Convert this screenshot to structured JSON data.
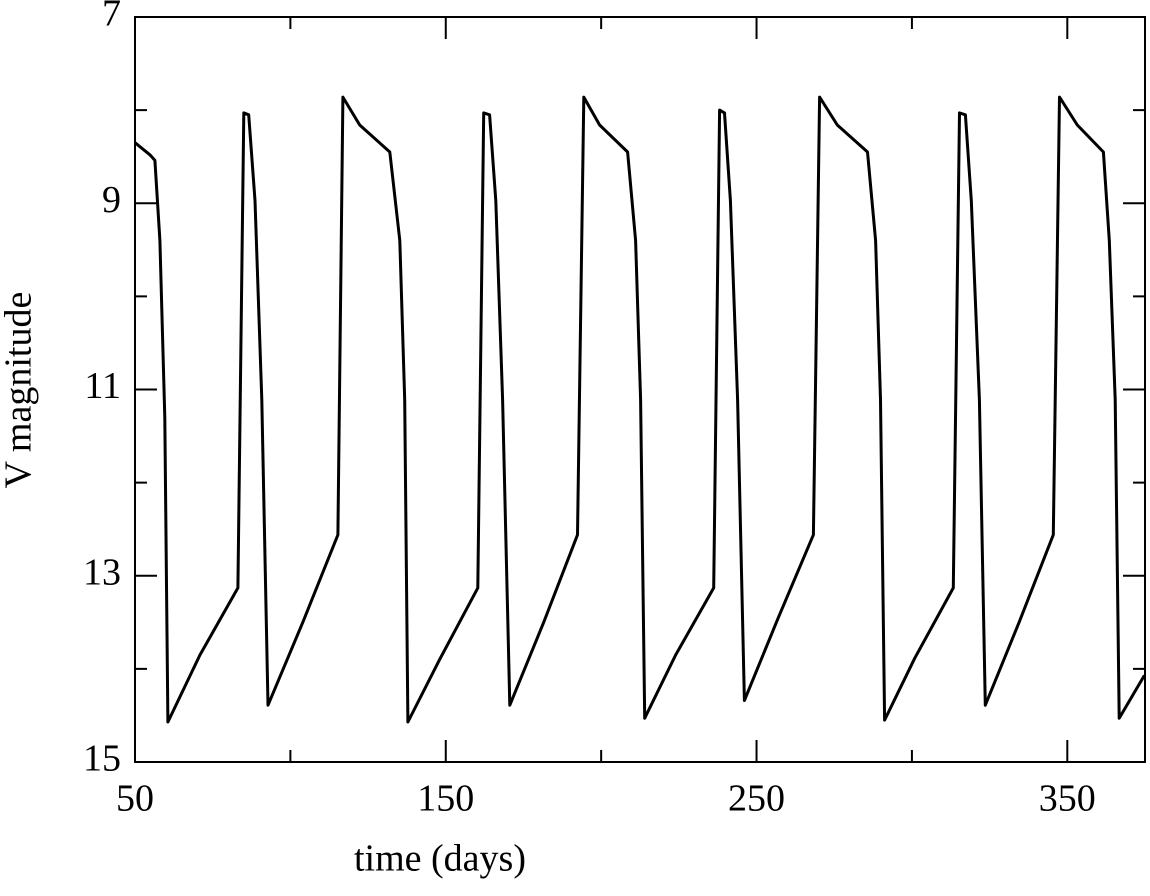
{
  "chart_data": {
    "type": "line",
    "x_label": "time (days)",
    "y_label": "V magnitude",
    "color": "#000000",
    "xlim": [
      50,
      375
    ],
    "ylim": [
      15,
      7
    ],
    "xticks": [
      50,
      150,
      250,
      350
    ],
    "xminor_ticks": [
      100,
      200,
      300
    ],
    "yticks": [
      7,
      9,
      11,
      13,
      15
    ],
    "yminor_ticks": [
      8,
      10,
      12,
      14
    ],
    "x": [
      50,
      54.8,
      56.4,
      58,
      59.6,
      60.6,
      70.9,
      83.1,
      85,
      86.6,
      88.6,
      90.8,
      92.8,
      104,
      115.3,
      116.9,
      122.3,
      132,
      135.2,
      136.8,
      137.8,
      148,
      160.3,
      162.2,
      164.1,
      166.1,
      168.3,
      170.6,
      181.5,
      192.4,
      194.4,
      199.5,
      208.5,
      211.1,
      212.7,
      214,
      224,
      236.2,
      238.1,
      239.7,
      241.6,
      243.9,
      246.1,
      257,
      268.3,
      270.3,
      276,
      285.7,
      288.3,
      289.9,
      291.2,
      301,
      313.3,
      315.3,
      317.2,
      319.1,
      321.7,
      323.6,
      334.5,
      345.5,
      347.5,
      353.2,
      361.6,
      363.5,
      365.4,
      366.7,
      374.8
    ],
    "values": [
      8.35,
      8.48,
      8.54,
      9.4,
      11.3,
      14.57,
      13.85,
      13.13,
      8.03,
      8.05,
      8.97,
      11.11,
      14.39,
      13.5,
      12.56,
      7.86,
      8.16,
      8.45,
      9.4,
      11.11,
      14.57,
      13.9,
      13.13,
      8.03,
      8.05,
      8.97,
      11.11,
      14.39,
      13.5,
      12.56,
      7.86,
      8.16,
      8.45,
      9.4,
      11.11,
      14.53,
      13.85,
      13.13,
      8.0,
      8.03,
      8.97,
      11.11,
      14.34,
      13.45,
      12.56,
      7.86,
      8.16,
      8.45,
      9.4,
      11.11,
      14.55,
      13.88,
      13.13,
      8.03,
      8.05,
      8.97,
      11.11,
      14.39,
      13.5,
      12.56,
      7.86,
      8.16,
      8.45,
      9.4,
      11.11,
      14.53,
      14.07
    ]
  }
}
